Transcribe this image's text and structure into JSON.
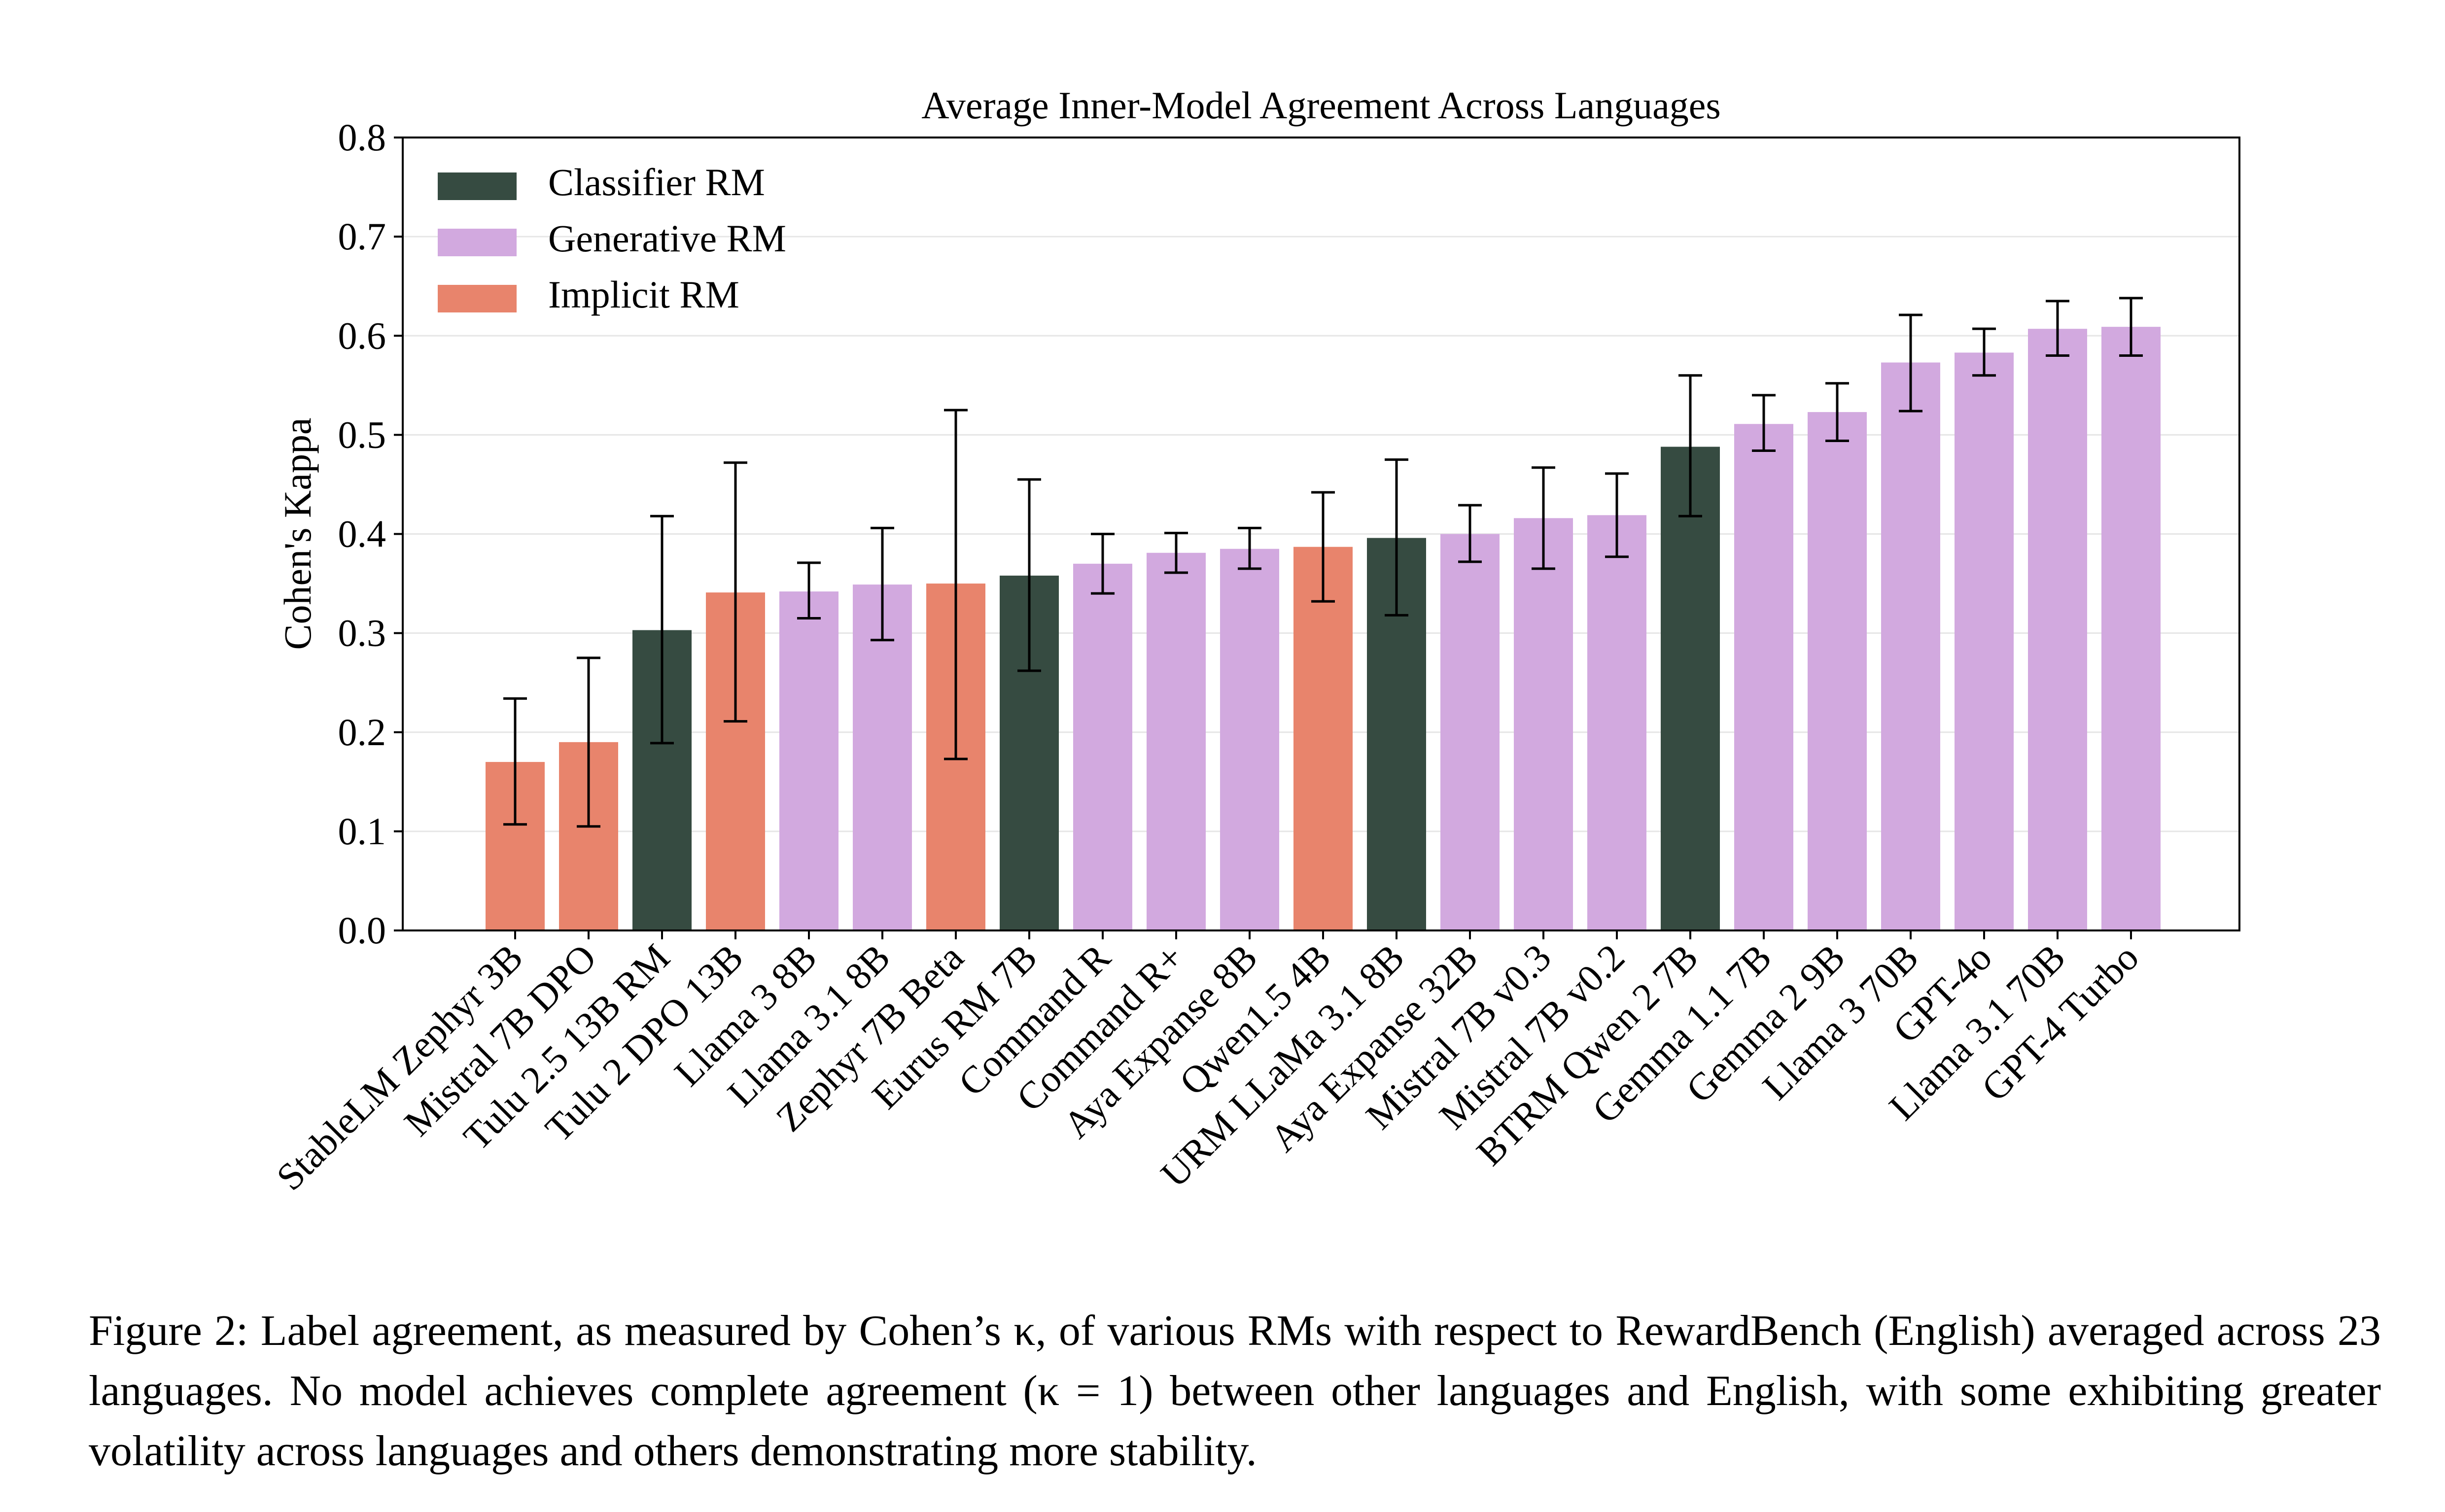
{
  "chart_data": {
    "type": "bar",
    "title": "Average Inner-Model Agreement Across Languages",
    "ylabel": "Cohen's Kappa",
    "xlabel": "",
    "ylim": [
      0,
      0.8
    ],
    "yticks": [
      "0.0",
      "0.1",
      "0.2",
      "0.3",
      "0.4",
      "0.5",
      "0.6",
      "0.7",
      "0.8"
    ],
    "grid": "horizontal",
    "legend_position": "top-left",
    "legend": [
      {
        "name": "Classifier RM",
        "color": "#364b41"
      },
      {
        "name": "Generative RM",
        "color": "#d2a9df"
      },
      {
        "name": "Implicit RM",
        "color": "#e8846c"
      }
    ],
    "categories": [
      "StableLM Zephyr 3B",
      "Mistral 7B DPO",
      "Tulu 2.5 13B RM",
      "Tulu 2 DPO 13B",
      "Llama 3 8B",
      "Llama 3.1 8B",
      "Zephyr 7B Beta",
      "Eurus RM 7B",
      "Command R",
      "Command R+",
      "Aya Expanse 8B",
      "Qwen1.5 4B",
      "URM LLaMa 3.1 8B",
      "Aya Expanse 32B",
      "Mistral 7B v0.3",
      "Mistral 7B v0.2",
      "BTRM Qwen 2 7B",
      "Gemma 1.1 7B",
      "Gemma 2 9B",
      "Llama 3 70B",
      "GPT-4o",
      "Llama 3.1 70B",
      "GPT-4 Turbo"
    ],
    "types": [
      "Implicit RM",
      "Implicit RM",
      "Classifier RM",
      "Implicit RM",
      "Generative RM",
      "Generative RM",
      "Implicit RM",
      "Classifier RM",
      "Generative RM",
      "Generative RM",
      "Generative RM",
      "Implicit RM",
      "Classifier RM",
      "Generative RM",
      "Generative RM",
      "Generative RM",
      "Classifier RM",
      "Generative RM",
      "Generative RM",
      "Generative RM",
      "Generative RM",
      "Generative RM",
      "Generative RM"
    ],
    "values": [
      0.17,
      0.19,
      0.303,
      0.341,
      0.342,
      0.349,
      0.35,
      0.358,
      0.37,
      0.381,
      0.385,
      0.387,
      0.396,
      0.4,
      0.416,
      0.419,
      0.488,
      0.511,
      0.523,
      0.573,
      0.583,
      0.607,
      0.609
    ],
    "error_low": [
      0.107,
      0.105,
      0.189,
      0.211,
      0.315,
      0.293,
      0.173,
      0.262,
      0.34,
      0.361,
      0.365,
      0.332,
      0.318,
      0.372,
      0.365,
      0.377,
      0.418,
      0.484,
      0.494,
      0.524,
      0.56,
      0.58,
      0.58
    ],
    "error_high": [
      0.234,
      0.275,
      0.418,
      0.472,
      0.371,
      0.406,
      0.525,
      0.455,
      0.4,
      0.401,
      0.406,
      0.442,
      0.475,
      0.429,
      0.467,
      0.461,
      0.56,
      0.54,
      0.552,
      0.621,
      0.607,
      0.635,
      0.638
    ]
  },
  "caption": "Figure 2: Label agreement, as measured by Cohen’s κ, of various RMs with respect to RewardBench (English) averaged across 23 languages.  No model achieves complete agreement (κ = 1) between other languages and English, with some exhibiting greater volatility across languages and others demonstrating more stability."
}
